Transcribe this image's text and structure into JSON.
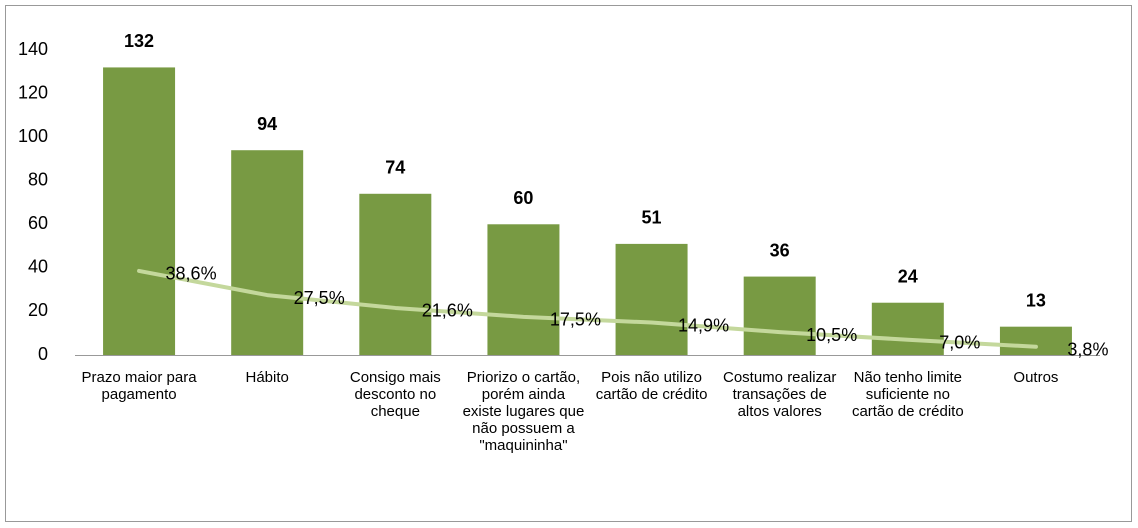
{
  "chart_data": {
    "type": "bar",
    "categories": [
      "Prazo maior para pagamento",
      "Hábito",
      "Consigo mais desconto no cheque",
      "Priorizo o cartão, porém ainda existe lugares que não possuem a \"maquininha\"",
      "Pois não utilizo cartão de crédito",
      "Costumo realizar transações de altos valores",
      "Não tenho limite suficiente no cartão de crédito",
      "Outros"
    ],
    "series": [
      {
        "type": "bar",
        "color": "#789a43",
        "values": [
          132,
          94,
          74,
          60,
          51,
          36,
          24,
          13
        ]
      },
      {
        "type": "line",
        "color": "#c4d89c",
        "values": [
          38.6,
          27.5,
          21.6,
          17.5,
          14.9,
          10.5,
          7.0,
          3.8
        ],
        "value_labels": [
          "38,6%",
          "27,5%",
          "21,6%",
          "17,5%",
          "14,9%",
          "10,5%",
          "7,0%",
          "3,8%"
        ]
      }
    ],
    "ylim": [
      0,
      140
    ],
    "yticks": [
      0,
      20,
      40,
      60,
      80,
      100,
      120,
      140
    ]
  }
}
